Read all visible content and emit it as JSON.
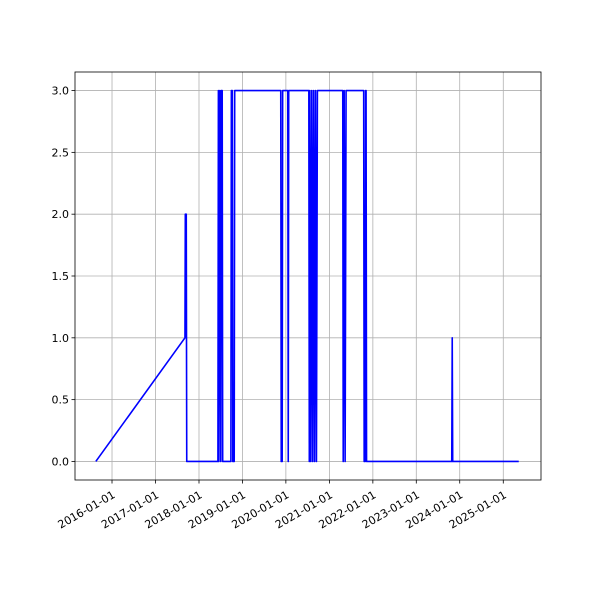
{
  "chart_data": {
    "type": "line",
    "color": "#0000ff",
    "grid": true,
    "x": [
      "2015-08-18",
      "2017-09-05",
      "2017-09-08",
      "2017-09-16",
      "2017-09-20",
      "2018-06-09",
      "2018-06-13",
      "2018-06-17",
      "2018-06-25",
      "2018-07-03",
      "2018-07-07",
      "2018-07-15",
      "2018-07-19",
      "2018-09-26",
      "2018-09-30",
      "2018-10-08",
      "2018-10-12",
      "2018-10-24",
      "2018-10-28",
      "2019-11-19",
      "2019-11-23",
      "2019-12-01",
      "2019-12-05",
      "2020-01-17",
      "2020-01-21",
      "2020-01-25",
      "2020-07-12",
      "2020-07-16",
      "2020-07-20",
      "2020-07-28",
      "2020-08-05",
      "2020-08-13",
      "2020-08-21",
      "2020-08-29",
      "2020-09-06",
      "2020-09-14",
      "2020-09-22",
      "2021-04-23",
      "2021-04-27",
      "2021-05-05",
      "2021-05-13",
      "2021-05-21",
      "2021-10-16",
      "2021-10-20",
      "2021-10-28",
      "2021-11-01",
      "2021-11-05",
      "2021-11-09",
      "2023-10-26",
      "2023-10-30",
      "2023-11-03",
      "2025-05-11"
    ],
    "values": [
      0,
      1,
      2,
      2,
      0,
      0,
      3,
      0,
      3,
      0,
      3,
      3,
      0,
      0,
      3,
      3,
      0,
      0,
      3,
      3,
      0,
      0,
      3,
      3,
      0,
      3,
      3,
      0,
      3,
      0,
      3,
      0,
      3,
      0,
      3,
      0,
      3,
      3,
      0,
      3,
      0,
      3,
      3,
      0,
      0,
      3,
      3,
      0,
      0,
      1,
      0,
      0
    ],
    "xlim": [
      "2015-02-24",
      "2025-11-14"
    ],
    "xticks": [
      "2016-01-01",
      "2017-01-01",
      "2018-01-01",
      "2019-01-01",
      "2020-01-01",
      "2021-01-01",
      "2022-01-01",
      "2023-01-01",
      "2024-01-01",
      "2025-01-01"
    ],
    "ylim": [
      -0.15,
      3.15
    ],
    "yticks": [
      {
        "value": 0,
        "label": "0.0"
      },
      0.5,
      {
        "value": 1,
        "label": "1.0"
      },
      1.5,
      {
        "value": 2,
        "label": "2.0"
      },
      2.5,
      {
        "value": 3,
        "label": "3.0"
      }
    ]
  }
}
